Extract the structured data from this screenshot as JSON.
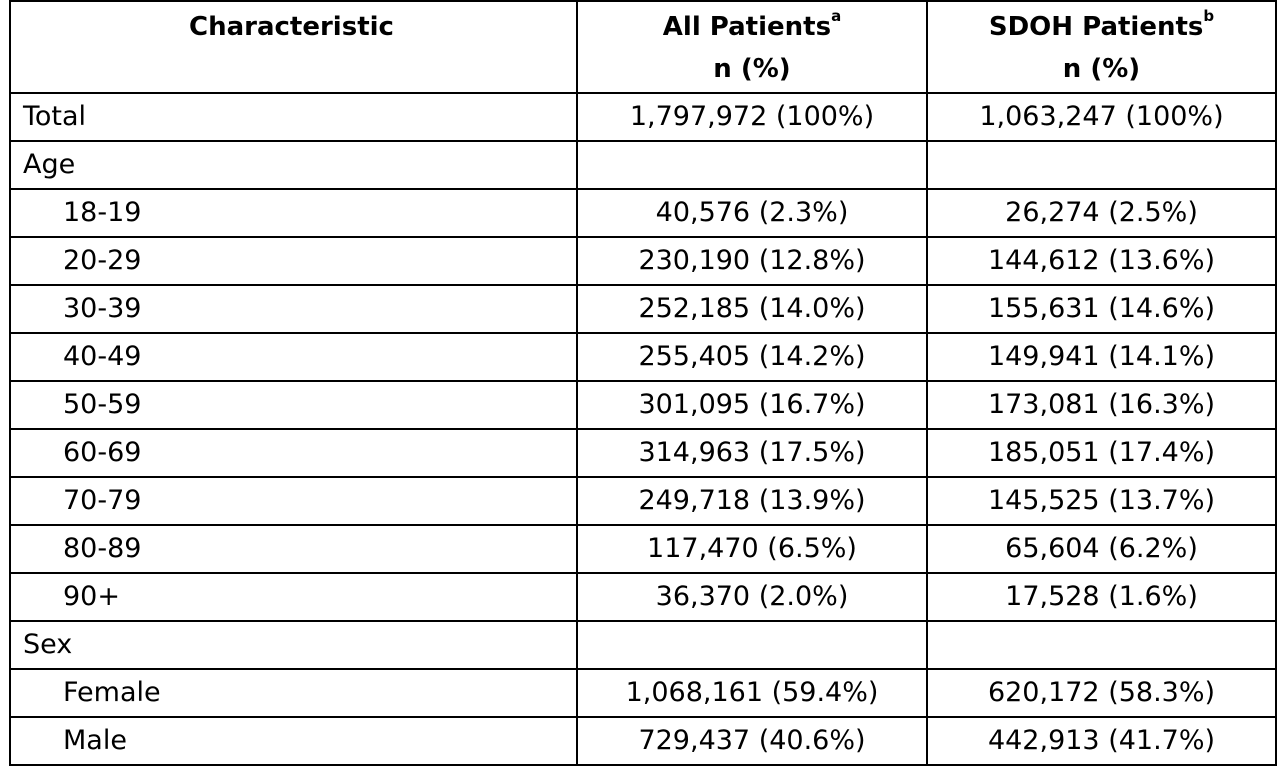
{
  "header": {
    "characteristic": "Characteristic",
    "all_patients": "All Patients",
    "all_patients_sup": "a",
    "sdoh_patients": "SDOH Patients",
    "sdoh_patients_sup": "b",
    "unit_all": "n (%)",
    "unit_sdoh": "n (%)"
  },
  "rows": [
    {
      "label": "Total",
      "indent": false,
      "all": "1,797,972 (100%)",
      "sdoh": "1,063,247 (100%)"
    },
    {
      "label": "Age",
      "indent": false,
      "all": "",
      "sdoh": ""
    },
    {
      "label": "18-19",
      "indent": true,
      "all": "40,576 (2.3%)",
      "sdoh": "26,274 (2.5%)"
    },
    {
      "label": "20-29",
      "indent": true,
      "all": "230,190 (12.8%)",
      "sdoh": "144,612 (13.6%)"
    },
    {
      "label": "30-39",
      "indent": true,
      "all": "252,185 (14.0%)",
      "sdoh": "155,631 (14.6%)"
    },
    {
      "label": "40-49",
      "indent": true,
      "all": "255,405 (14.2%)",
      "sdoh": "149,941 (14.1%)"
    },
    {
      "label": "50-59",
      "indent": true,
      "all": "301,095 (16.7%)",
      "sdoh": "173,081 (16.3%)"
    },
    {
      "label": "60-69",
      "indent": true,
      "all": "314,963 (17.5%)",
      "sdoh": "185,051 (17.4%)"
    },
    {
      "label": "70-79",
      "indent": true,
      "all": "249,718 (13.9%)",
      "sdoh": "145,525 (13.7%)"
    },
    {
      "label": "80-89",
      "indent": true,
      "all": "117,470 (6.5%)",
      "sdoh": "65,604 (6.2%)"
    },
    {
      "label": "90+",
      "indent": true,
      "all": "36,370 (2.0%)",
      "sdoh": "17,528 (1.6%)"
    },
    {
      "label": "Sex",
      "indent": false,
      "all": "",
      "sdoh": ""
    },
    {
      "label": "Female",
      "indent": true,
      "all": "1,068,161 (59.4%)",
      "sdoh": "620,172 (58.3%)"
    },
    {
      "label": "Male",
      "indent": true,
      "all": "729,437 (40.6%)",
      "sdoh": "442,913 (41.7%)"
    }
  ]
}
